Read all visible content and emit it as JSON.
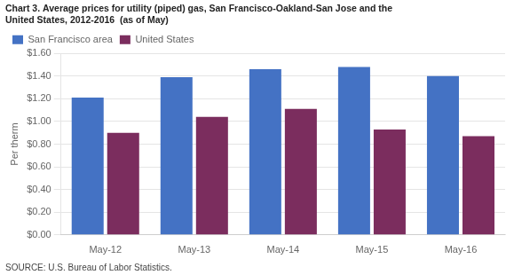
{
  "chart_data": {
    "type": "bar",
    "title": [
      "Chart 3. Average prices for utility (piped) gas, San Francisco-Oakland-San Jose and the",
      "United States, 2012-2016  (as of May)"
    ],
    "ylabel": "Per therm",
    "annotations": [
      "SOURCE: U.S. Bureau of Labor Statistics."
    ],
    "categories": [
      "May-12",
      "May-13",
      "May-14",
      "May-15",
      "May-16"
    ],
    "series": [
      {
        "name": "San Francisco area",
        "color": "#4472C4",
        "values": [
          1.21,
          1.39,
          1.46,
          1.48,
          1.4
        ]
      },
      {
        "name": "United States",
        "color": "#7B2D5E",
        "values": [
          0.9,
          1.04,
          1.11,
          0.93,
          0.87
        ]
      }
    ],
    "ylim": [
      0,
      1.6
    ],
    "yticks": [
      {
        "value": 0.0,
        "label": "$0.00"
      },
      {
        "value": 0.2,
        "label": "$0.20"
      },
      {
        "value": 0.4,
        "label": "$0.40"
      },
      {
        "value": 0.6,
        "label": "$0.60"
      },
      {
        "value": 0.8,
        "label": "$0.80"
      },
      {
        "value": 1.0,
        "label": "$1.00"
      },
      {
        "value": 1.2,
        "label": "$1.20"
      },
      {
        "value": 1.4,
        "label": "$1.40"
      },
      {
        "value": 1.6,
        "label": "$1.60"
      }
    ],
    "grid": true,
    "legend": "top left"
  }
}
